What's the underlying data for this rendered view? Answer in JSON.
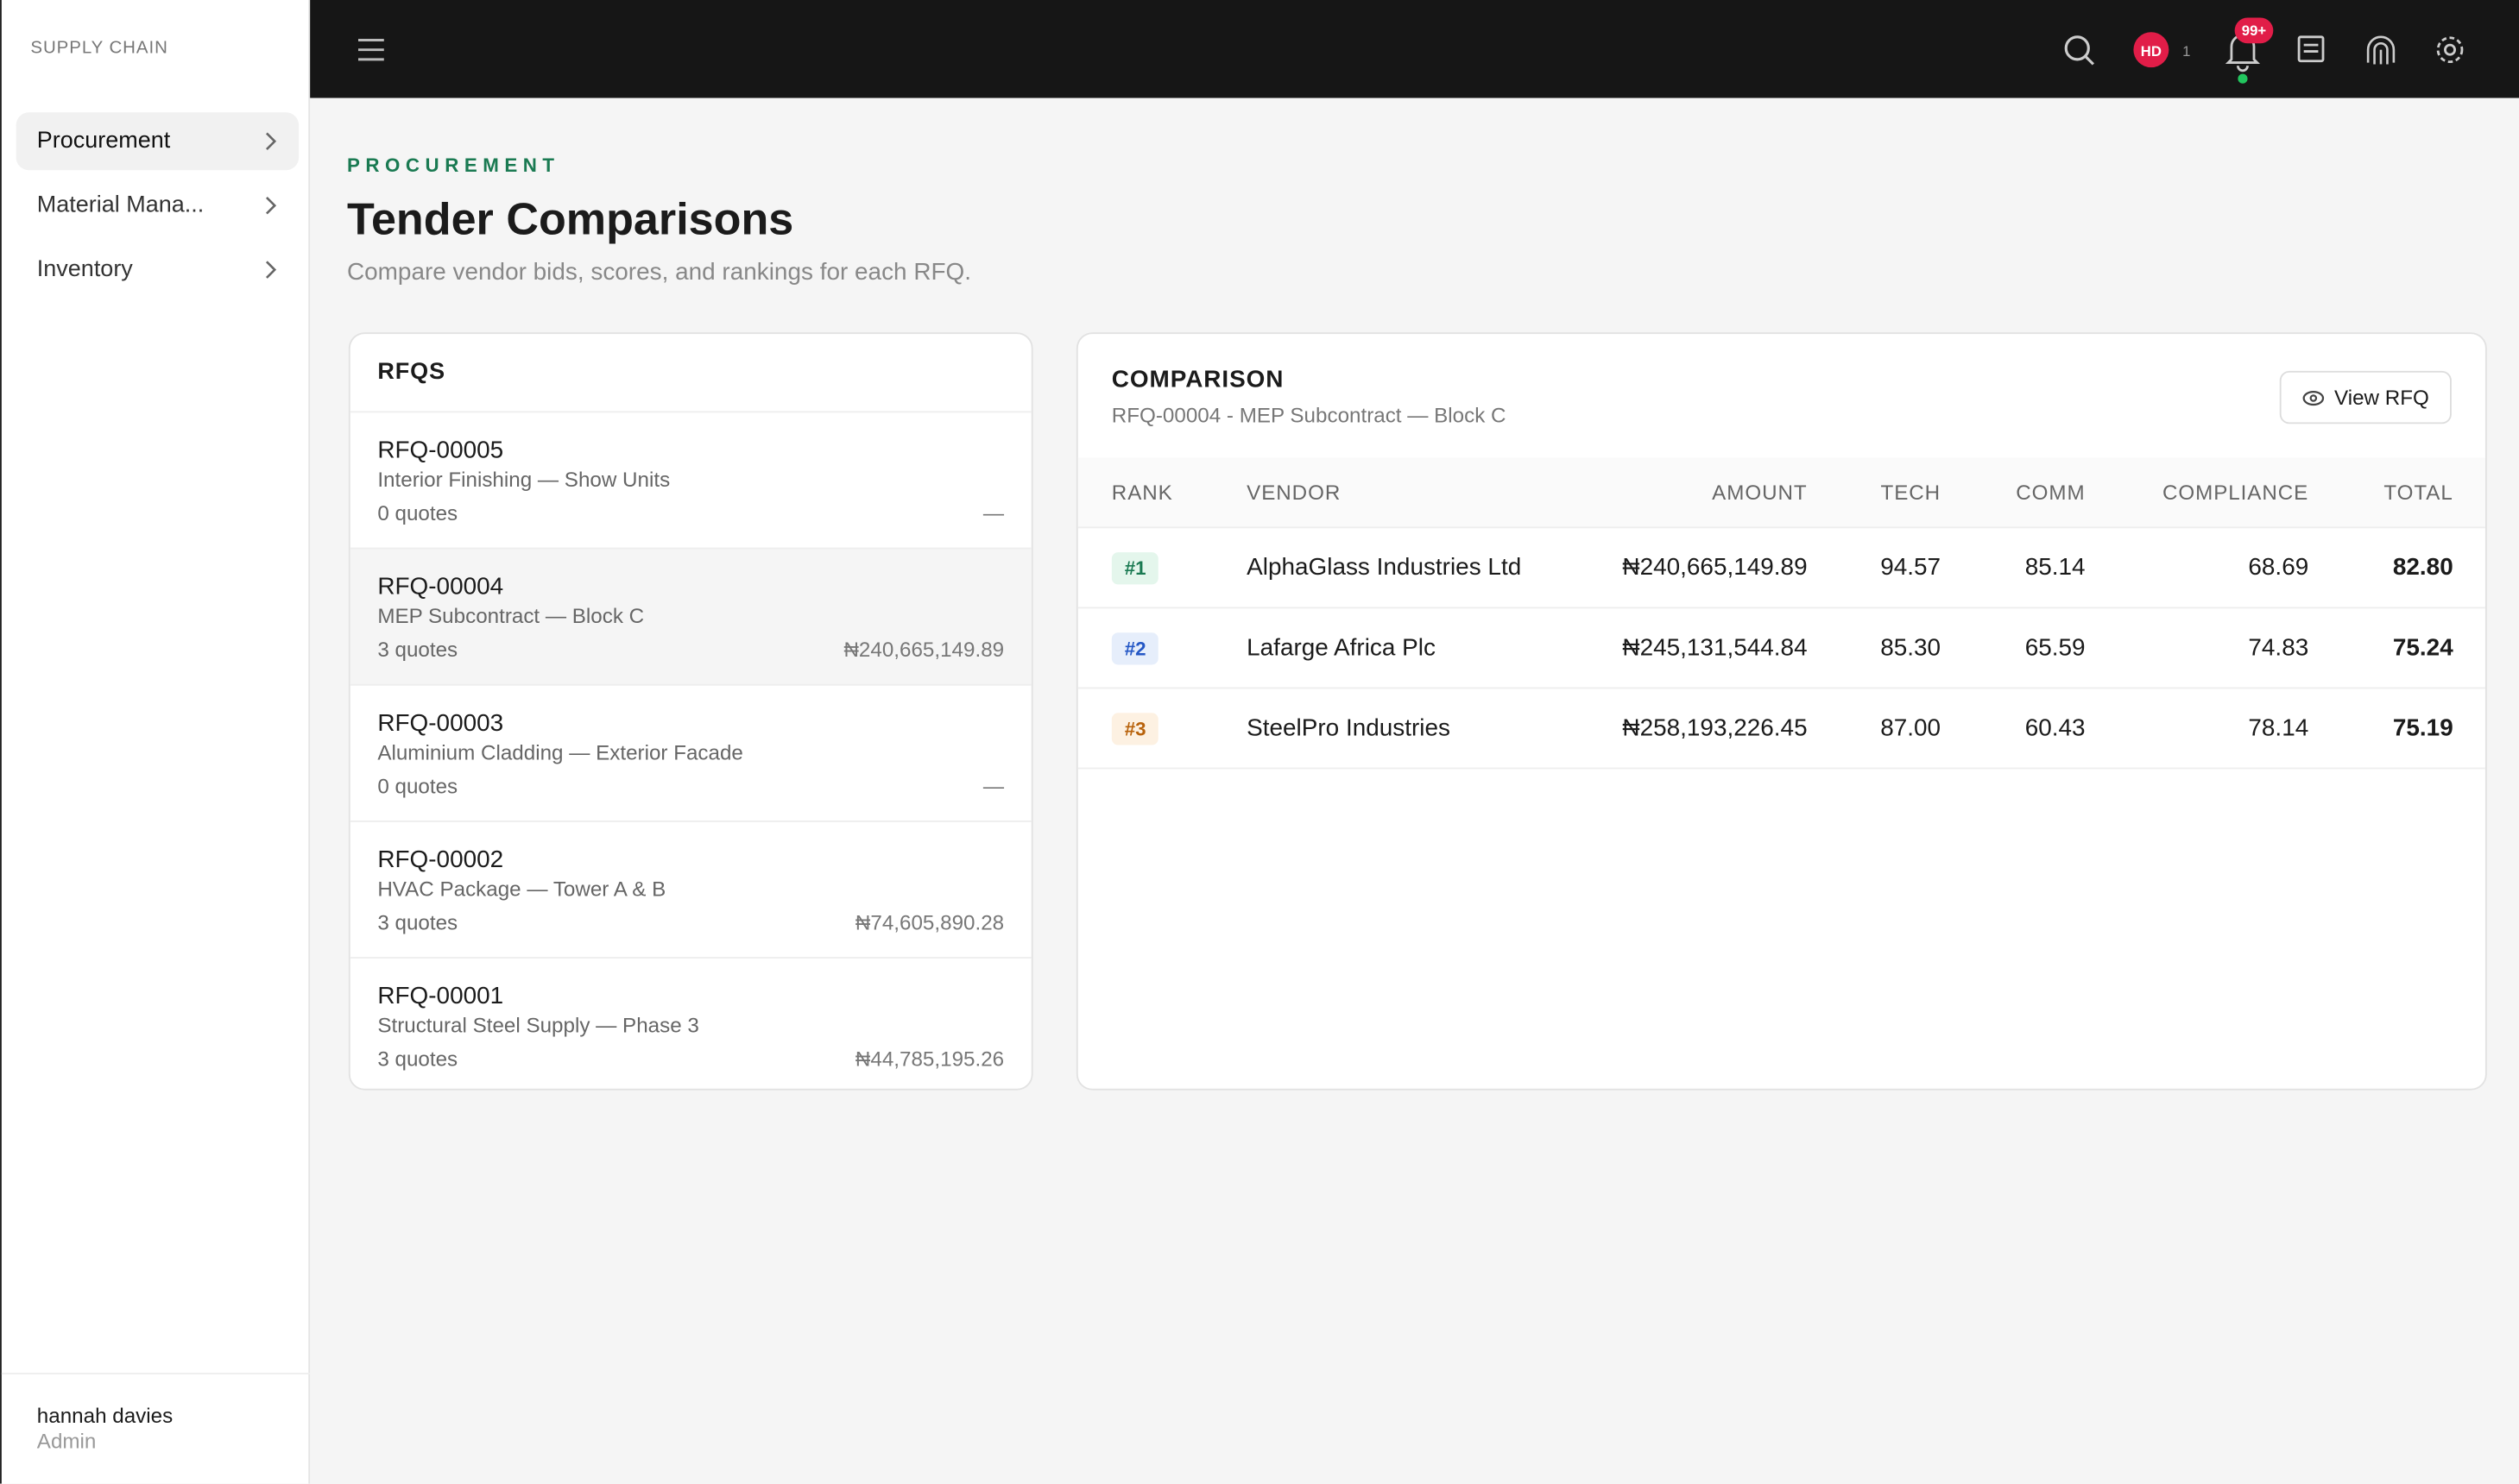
{
  "sidebar": {
    "brand": "SUPPLY CHAIN",
    "nav": [
      "Procurement",
      "Material Mana...",
      "Inventory"
    ],
    "user": {
      "name": "hannah davies",
      "role": "Admin"
    }
  },
  "topbar": {
    "avatar": "HD",
    "avatar_count": "1",
    "notifications": "99+"
  },
  "header": {
    "eyebrow": "PROCUREMENT",
    "title": "Tender Comparisons",
    "subtitle": "Compare vendor bids, scores, and rankings for each RFQ."
  },
  "rfqs": {
    "title": "RFQS",
    "items": [
      {
        "id": "RFQ-00005",
        "description": "Interior Finishing — Show Units",
        "quotes": "0 quotes",
        "amount": "—"
      },
      {
        "id": "RFQ-00004",
        "description": "MEP Subcontract — Block C",
        "quotes": "3 quotes",
        "amount": "₦240,665,149.89"
      },
      {
        "id": "RFQ-00003",
        "description": "Aluminium Cladding — Exterior Facade",
        "quotes": "0 quotes",
        "amount": "—"
      },
      {
        "id": "RFQ-00002",
        "description": "HVAC Package — Tower A & B",
        "quotes": "3 quotes",
        "amount": "₦74,605,890.28"
      },
      {
        "id": "RFQ-00001",
        "description": "Structural Steel Supply — Phase 3",
        "quotes": "3 quotes",
        "amount": "₦44,785,195.26"
      }
    ]
  },
  "comparison": {
    "title": "COMPARISON",
    "subtitle": "RFQ-00004 - MEP Subcontract — Block C",
    "button": "View RFQ",
    "columns": [
      "RANK",
      "VENDOR",
      "AMOUNT",
      "TECH",
      "COMM",
      "COMPLIANCE",
      "TOTAL"
    ],
    "rows": [
      [
        "#1",
        "AlphaGlass Industries Ltd",
        "₦240,665,149.89",
        "94.57",
        "85.14",
        "68.69",
        "82.80"
      ],
      [
        "#2",
        "Lafarge Africa Plc",
        "₦245,131,544.84",
        "85.30",
        "65.59",
        "74.83",
        "75.24"
      ],
      [
        "#3",
        "SteelPro Industries",
        "₦258,193,226.45",
        "87.00",
        "60.43",
        "78.14",
        "75.19"
      ]
    ]
  }
}
